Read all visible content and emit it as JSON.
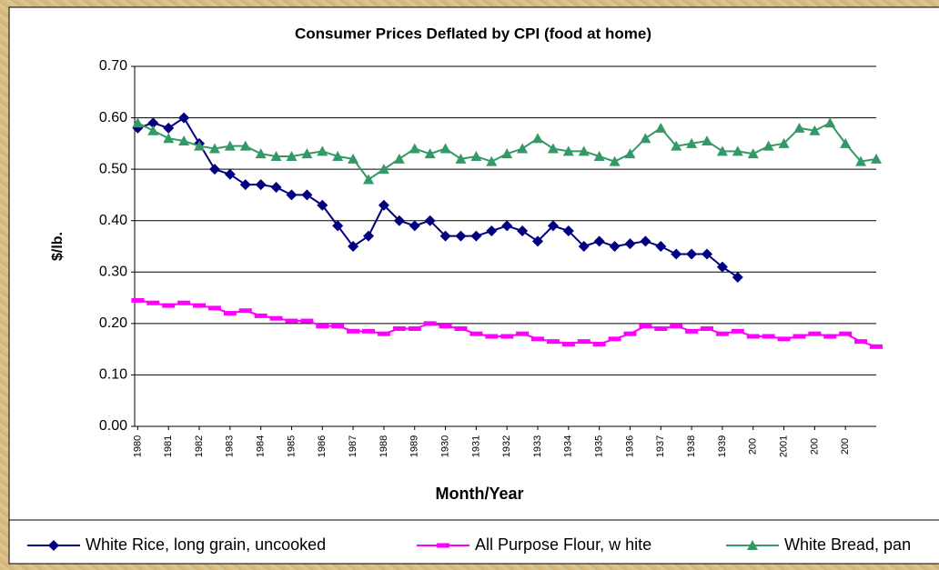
{
  "chart_data": {
    "type": "line",
    "title": "Consumer Prices Deflated by CPI (food at home)",
    "x_label": "Month/Year",
    "y_label": "$/lb.",
    "x": [
      1980,
      1980.5,
      1981,
      1981.5,
      1982,
      1982.5,
      1983,
      1983.5,
      1984,
      1984.5,
      1985,
      1985.5,
      1986,
      1986.5,
      1987,
      1987.5,
      1988,
      1988.5,
      1989,
      1989.5,
      1990,
      1990.5,
      1991,
      1991.5,
      1992,
      1992.5,
      1993,
      1993.5,
      1994,
      1994.5,
      1995,
      1995.5,
      1996,
      1996.5,
      1997,
      1997.5,
      1998,
      1998.5,
      1999,
      1999.5,
      2000,
      2000.5,
      2001,
      2001.5,
      2002,
      2002.5,
      2003,
      2003.5,
      2004
    ],
    "xlim": [
      1979.9,
      2004
    ],
    "xticks": [
      {
        "value": 1980,
        "label": "1980"
      },
      {
        "value": 1981,
        "label": "1981"
      },
      {
        "value": 1982,
        "label": "1982"
      },
      {
        "value": 1983,
        "label": "1983"
      },
      {
        "value": 1984,
        "label": "1984"
      },
      {
        "value": 1985,
        "label": "1985"
      },
      {
        "value": 1986,
        "label": "1986"
      },
      {
        "value": 1987,
        "label": "1987"
      },
      {
        "value": 1988,
        "label": "1988"
      },
      {
        "value": 1989,
        "label": "1989"
      },
      {
        "value": 1990,
        "label": "1930"
      },
      {
        "value": 1991,
        "label": "1931"
      },
      {
        "value": 1992,
        "label": "1932"
      },
      {
        "value": 1993,
        "label": "1933"
      },
      {
        "value": 1994,
        "label": "1934"
      },
      {
        "value": 1995,
        "label": "1935"
      },
      {
        "value": 1996,
        "label": "1936"
      },
      {
        "value": 1997,
        "label": "1937"
      },
      {
        "value": 1998,
        "label": "1938"
      },
      {
        "value": 1999,
        "label": "1939"
      },
      {
        "value": 2000,
        "label": "200"
      },
      {
        "value": 2001,
        "label": "2001"
      },
      {
        "value": 2002,
        "label": "200"
      },
      {
        "value": 2003,
        "label": "200"
      }
    ],
    "ylim": [
      0,
      0.7
    ],
    "yticks": [
      {
        "value": 0,
        "label": "0.00"
      },
      {
        "value": 0.1,
        "label": "0.10"
      },
      {
        "value": 0.2,
        "label": "0.20"
      },
      {
        "value": 0.3,
        "label": "0.30"
      },
      {
        "value": 0.4,
        "label": "0.40"
      },
      {
        "value": 0.5,
        "label": "0.50"
      },
      {
        "value": 0.6,
        "label": "0.60"
      },
      {
        "value": 0.7,
        "label": "0.70"
      }
    ],
    "grid": true,
    "legend": "bottom",
    "series": [
      {
        "name": "White Rice, long grain, uncooked",
        "color": "#000080",
        "marker": "diamond",
        "values": [
          0.58,
          0.59,
          0.58,
          0.6,
          0.55,
          0.5,
          0.49,
          0.47,
          0.47,
          0.465,
          0.45,
          0.45,
          0.43,
          0.39,
          0.35,
          0.37,
          0.43,
          0.4,
          0.39,
          0.4,
          0.37,
          0.37,
          0.37,
          0.38,
          0.39,
          0.38,
          0.36,
          0.39,
          0.38,
          0.35,
          0.36,
          0.35,
          0.355,
          0.36,
          0.35,
          0.335,
          0.335,
          0.335,
          0.31,
          0.29,
          null,
          null,
          null,
          null,
          null,
          null,
          null,
          null,
          null
        ]
      },
      {
        "name": "All Purpose Flour, w hite",
        "color": "#ff00ff",
        "marker": "dash",
        "values": [
          0.245,
          0.24,
          0.235,
          0.24,
          0.235,
          0.23,
          0.22,
          0.225,
          0.215,
          0.21,
          0.205,
          0.205,
          0.195,
          0.195,
          0.185,
          0.185,
          0.18,
          0.19,
          0.19,
          0.2,
          0.195,
          0.19,
          0.18,
          0.175,
          0.175,
          0.18,
          0.17,
          0.165,
          0.16,
          0.165,
          0.16,
          0.17,
          0.18,
          0.195,
          0.19,
          0.195,
          0.185,
          0.19,
          0.18,
          0.185,
          0.175,
          0.175,
          0.17,
          0.175,
          0.18,
          0.175,
          0.18,
          0.165,
          0.155
        ]
      },
      {
        "name": "White Bread, pan",
        "color": "#339966",
        "marker": "triangle",
        "values": [
          0.59,
          0.575,
          0.56,
          0.555,
          0.545,
          0.54,
          0.545,
          0.545,
          0.53,
          0.525,
          0.525,
          0.53,
          0.535,
          0.525,
          0.52,
          0.48,
          0.5,
          0.52,
          0.54,
          0.53,
          0.54,
          0.52,
          0.525,
          0.515,
          0.53,
          0.54,
          0.56,
          0.54,
          0.535,
          0.535,
          0.525,
          0.515,
          0.53,
          0.56,
          0.58,
          0.545,
          0.55,
          0.555,
          0.535,
          0.535,
          0.53,
          0.545,
          0.55,
          0.58,
          0.575,
          0.59,
          0.55,
          0.515,
          0.52
        ]
      }
    ]
  }
}
